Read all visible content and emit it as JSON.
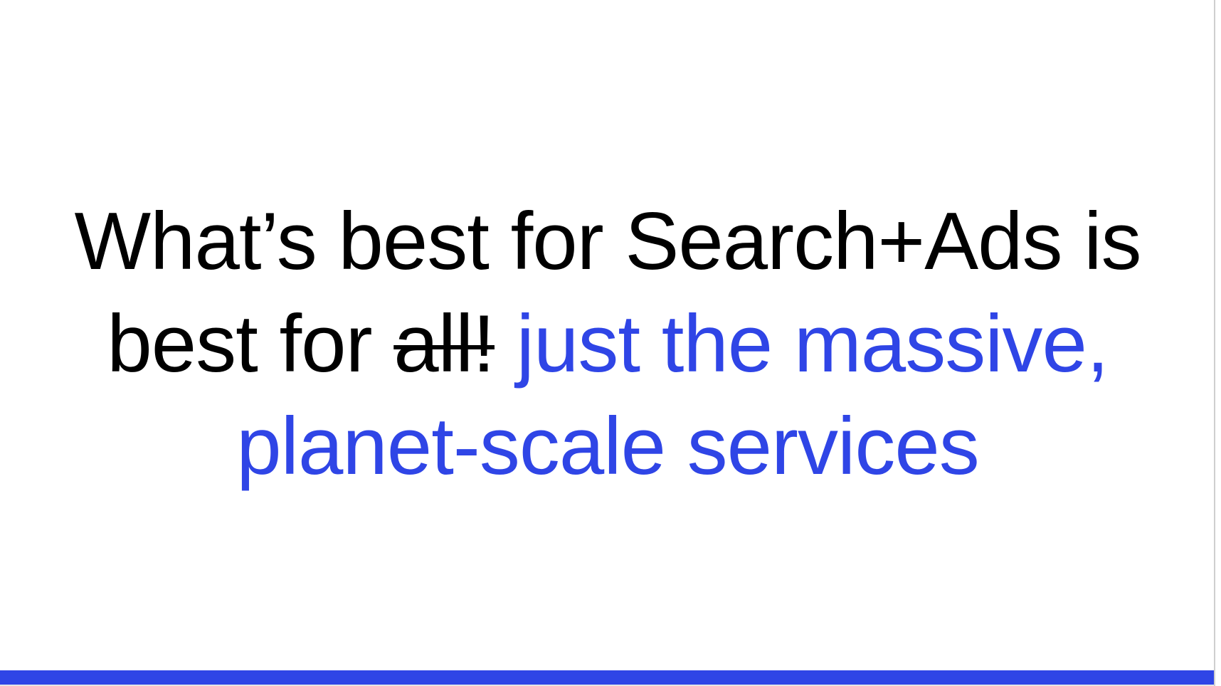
{
  "slide": {
    "line1": "What’s best for Search+Ads is",
    "line2_prefix": "best for ",
    "struck_text": "all!",
    "line2_accent": " just the massive,",
    "line3_accent": "planet-scale services"
  },
  "colors": {
    "text": "#000000",
    "accent": "#2f45e6",
    "background": "#ffffff"
  }
}
